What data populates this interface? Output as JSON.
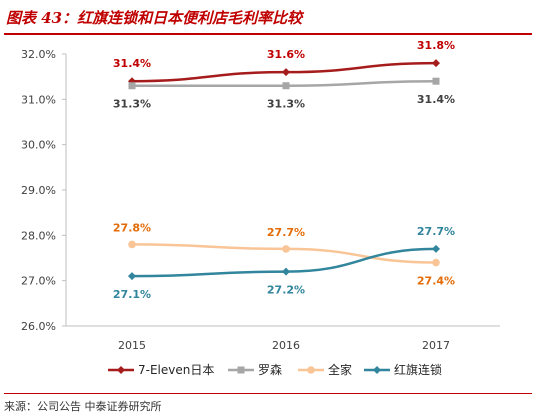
{
  "figure": {
    "title": "图表 43：红旗连锁和日本便利店毛利率比较",
    "source": "来源：公司公告  中泰证券研究所"
  },
  "chart_data": {
    "type": "line",
    "categories": [
      "2015",
      "2016",
      "2017"
    ],
    "y_ticks": [
      "26.0%",
      "27.0%",
      "28.0%",
      "29.0%",
      "30.0%",
      "31.0%",
      "32.0%"
    ],
    "ylim": [
      26.0,
      32.0
    ],
    "grid": false,
    "legend": "bottom",
    "series": [
      {
        "name": "7-Eleven日本",
        "values": [
          31.4,
          31.6,
          31.8
        ],
        "labels": [
          "31.4%",
          "31.6%",
          "31.8%"
        ],
        "color": "#a61c1c",
        "label_color": "#c00000",
        "marker": "diamond"
      },
      {
        "name": "罗森",
        "values": [
          31.3,
          31.3,
          31.4
        ],
        "labels": [
          "31.3%",
          "31.3%",
          "31.4%"
        ],
        "color": "#a6a6a6",
        "label_color": "#404040",
        "marker": "square"
      },
      {
        "name": "全家",
        "values": [
          27.8,
          27.7,
          27.4
        ],
        "labels": [
          "27.8%",
          "27.7%",
          "27.4%"
        ],
        "color": "#f9c596",
        "label_color": "#e36c09",
        "marker": "circle"
      },
      {
        "name": "红旗连锁",
        "values": [
          27.1,
          27.2,
          27.7
        ],
        "labels": [
          "27.1%",
          "27.2%",
          "27.7%"
        ],
        "color": "#31859c",
        "label_color": "#31859c",
        "marker": "diamond"
      }
    ]
  }
}
